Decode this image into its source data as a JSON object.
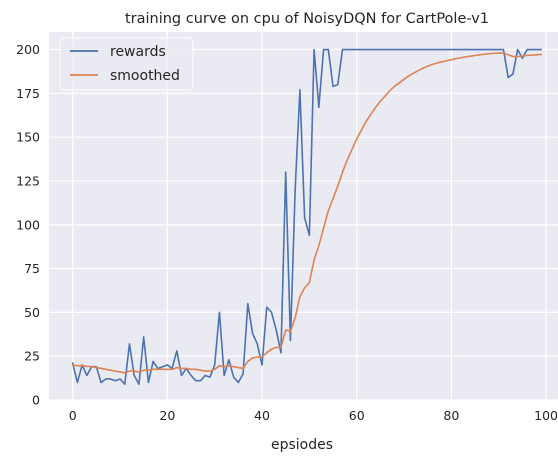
{
  "chart_data": {
    "type": "line",
    "title": "training curve on cpu of NoisyDQN for CartPole-v1",
    "xlabel": "epsiodes",
    "ylabel": "",
    "xlim": [
      -5,
      104
    ],
    "ylim": [
      0,
      210
    ],
    "xticks": [
      0,
      20,
      40,
      60,
      80,
      100
    ],
    "yticks": [
      0,
      25,
      50,
      75,
      100,
      125,
      150,
      175,
      200
    ],
    "grid": true,
    "legend_position": "top-left",
    "x": [
      0,
      1,
      2,
      3,
      4,
      5,
      6,
      7,
      8,
      9,
      10,
      11,
      12,
      13,
      14,
      15,
      16,
      17,
      18,
      19,
      20,
      21,
      22,
      23,
      24,
      25,
      26,
      27,
      28,
      29,
      30,
      31,
      32,
      33,
      34,
      35,
      36,
      37,
      38,
      39,
      40,
      41,
      42,
      43,
      44,
      45,
      46,
      47,
      48,
      49,
      50,
      51,
      52,
      53,
      54,
      55,
      56,
      57,
      58,
      59,
      60,
      61,
      62,
      63,
      64,
      65,
      66,
      67,
      68,
      69,
      70,
      71,
      72,
      73,
      74,
      75,
      76,
      77,
      78,
      79,
      80,
      81,
      82,
      83,
      84,
      85,
      86,
      87,
      88,
      89,
      90,
      91,
      92,
      93,
      94,
      95,
      96,
      97,
      98,
      99
    ],
    "series": [
      {
        "name": "rewards",
        "color": "#4c72b0",
        "values": [
          21,
          10,
          20,
          14,
          19,
          19,
          10,
          12,
          12,
          11,
          12,
          9,
          32,
          14,
          9,
          36,
          10,
          22,
          18,
          19,
          20,
          18,
          28,
          14,
          18,
          14,
          11,
          11,
          14,
          13,
          20,
          50,
          14,
          23,
          13,
          10,
          15,
          55,
          38,
          32,
          20,
          53,
          50,
          40,
          27,
          130,
          34,
          120,
          177,
          104,
          94,
          200,
          167,
          200,
          200,
          179,
          180,
          200,
          200,
          200,
          200,
          200,
          200,
          200,
          200,
          200,
          200,
          200,
          200,
          200,
          200,
          200,
          200,
          200,
          200,
          200,
          200,
          200,
          200,
          200,
          200,
          200,
          200,
          200,
          200,
          200,
          200,
          200,
          200,
          200,
          200,
          200,
          184,
          186,
          200,
          195,
          200,
          200,
          200,
          200
        ]
      },
      {
        "name": "smoothed",
        "color": "#dd8452",
        "values": [
          20,
          19.5,
          19.5,
          19.2,
          19,
          18.5,
          18,
          17.5,
          17,
          16.5,
          16,
          15.5,
          16.5,
          16.5,
          16,
          17,
          17,
          17.5,
          17.5,
          17.5,
          17.5,
          17.5,
          18.5,
          18,
          18,
          17.5,
          17.5,
          17,
          16.5,
          16.5,
          17.5,
          19.5,
          19,
          19.5,
          19,
          18.5,
          18,
          22,
          24,
          24.5,
          24.5,
          27,
          29,
          30,
          30,
          40,
          39,
          47,
          59,
          64,
          67,
          80,
          88,
          98,
          108,
          115,
          122,
          130,
          137,
          143,
          149,
          154,
          159,
          163,
          167,
          170.5,
          173.5,
          176.5,
          179,
          181,
          183,
          185,
          186.5,
          188,
          189.3,
          190.5,
          191.5,
          192.3,
          193,
          193.6,
          194.2,
          194.8,
          195.3,
          195.8,
          196.2,
          196.6,
          197,
          197.3,
          197.6,
          197.8,
          198,
          198,
          197,
          196,
          196,
          196.3,
          196.6,
          196.8,
          197,
          197.2
        ]
      }
    ]
  }
}
